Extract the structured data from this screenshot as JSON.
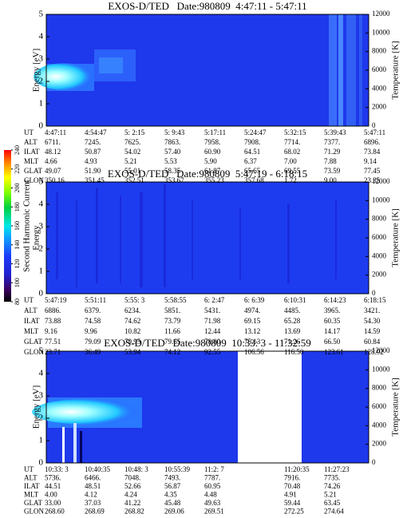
{
  "chart_data": [
    {
      "type": "spectrogram",
      "title": "EXOS-D/TED   Date:980809  4:47:11 - 5:47:11",
      "ylabel": "Energy [eV]",
      "y2label": "Temperature [K]",
      "ylim": [
        0,
        5
      ],
      "yticks": [
        0,
        1,
        2,
        3,
        4,
        5
      ],
      "y2lim": [
        0,
        12000
      ],
      "y2ticks": [
        0,
        2000,
        4000,
        6000,
        8000,
        10000,
        12000
      ],
      "ephemeris": {
        "labels": [
          "UT",
          "ALT",
          "ILAT",
          "MLT",
          "GLAT",
          "GLON"
        ],
        "rows": [
          [
            "4:47:11",
            "4:54:47",
            "5: 2:15",
            "5: 9:43",
            "5:17:11",
            "5:24:47",
            "5:32:15",
            "5:39:43",
            "5:47:11"
          ],
          [
            "6711.",
            "7245.",
            "7625.",
            "7863.",
            "7958.",
            "7908.",
            "7714.",
            "7377.",
            "6896."
          ],
          [
            "48.12",
            "50.87",
            "54.02",
            "57.40",
            "60.90",
            "64.51",
            "68.02",
            "71.29",
            "73.84"
          ],
          [
            "4.66",
            "4.93",
            "5.21",
            "5.53",
            "5.90",
            "6.37",
            "7.00",
            "7.88",
            "9.14"
          ],
          [
            "49.07",
            "51.90",
            "55.01",
            "58.35",
            "61.87",
            "65.65",
            "69.55",
            "73.59",
            "77.45"
          ],
          [
            "350.16",
            "351.45",
            "352.51",
            "353.67",
            "355.23",
            "357.68",
            "1.72",
            "9.00",
            "23.35"
          ]
        ]
      }
    },
    {
      "type": "spectrogram",
      "title": "EXOS-D/TED   Date:980809  5:47:19 - 6:18:15",
      "ylabel": "Energy",
      "y2label": "Temperature [K]",
      "ylim": [
        0,
        5
      ],
      "yticks": [
        0,
        1,
        2,
        3,
        4,
        5
      ],
      "y2lim": [
        0,
        12000
      ],
      "y2ticks": [
        0,
        2000,
        4000,
        6000,
        8000,
        10000,
        12000
      ],
      "ephemeris": {
        "labels": [
          "UT",
          "ALT",
          "ILAT",
          "MLT",
          "GLAT",
          "GLON"
        ],
        "rows": [
          [
            "5:47:19",
            "5:51:11",
            "5:55: 3",
            "5:58:55",
            "6: 2:47",
            "6: 6:39",
            "6:10:31",
            "6:14:23",
            "6:18:15"
          ],
          [
            "6886.",
            "6379.",
            "6234.",
            "5851.",
            "5431.",
            "4974.",
            "4485.",
            "3965.",
            "3421."
          ],
          [
            "73.88",
            "74.58",
            "74.62",
            "73.79",
            "71.98",
            "69.15",
            "65.28",
            "60.35",
            "54.30"
          ],
          [
            "9.16",
            "9.96",
            "10.82",
            "11.66",
            "12.44",
            "13.12",
            "13.69",
            "14.17",
            "14.59"
          ],
          [
            "77.51",
            "79.09",
            "79.95",
            "79.65",
            "78.00",
            "75.13",
            "71.26",
            "66.50",
            "60.84"
          ],
          [
            "23.71",
            "36.49",
            "53.94",
            "74.12",
            "92.55",
            "106.56",
            "116.50",
            "123.61",
            "128.92"
          ]
        ]
      }
    },
    {
      "type": "spectrogram",
      "title": "EXOS-D/TED   Date:980809  10:33: 3 - 11:32:59",
      "ylabel": "Energy [eV]",
      "y2label": "Temperature [K]",
      "ylim": [
        0,
        5
      ],
      "yticks": [
        0,
        1,
        2,
        3,
        4,
        5
      ],
      "y2lim": [
        0,
        12000
      ],
      "y2ticks": [
        0,
        2000,
        4000,
        6000,
        8000,
        10000,
        12000
      ],
      "ephemeris": {
        "labels": [
          "UT",
          "ALT",
          "ILAT",
          "MLT",
          "GLAT",
          "GLON"
        ],
        "rows": [
          [
            "10:33: 3",
            "10:40:35",
            "10:48: 3",
            "10:55:39",
            "11:2: 7",
            null,
            "11:20:35",
            "11:27:23"
          ],
          [
            "5736.",
            "6466.",
            "7048.",
            "7493.",
            "7787.",
            null,
            "7916.",
            "7735."
          ],
          [
            "44.51",
            "48.51",
            "52.66",
            "56.87",
            "60.95",
            null,
            "70.48",
            "74.26"
          ],
          [
            "4.00",
            "4.12",
            "4.24",
            "4.35",
            "4.48",
            null,
            "4.91",
            "5.21"
          ],
          [
            "33.00",
            "37.03",
            "41.22",
            "45.48",
            "49.63",
            null,
            "59.44",
            "63.45"
          ],
          [
            "268.60",
            "268.69",
            "268.82",
            "269.06",
            "269.51",
            null,
            "272.25",
            "274.64"
          ]
        ]
      }
    }
  ],
  "colorbar": {
    "label": "Second Harmonic Current",
    "lim": [
      80,
      240
    ],
    "ticks": [
      80,
      100,
      120,
      140,
      160,
      180,
      200,
      220,
      240
    ]
  }
}
